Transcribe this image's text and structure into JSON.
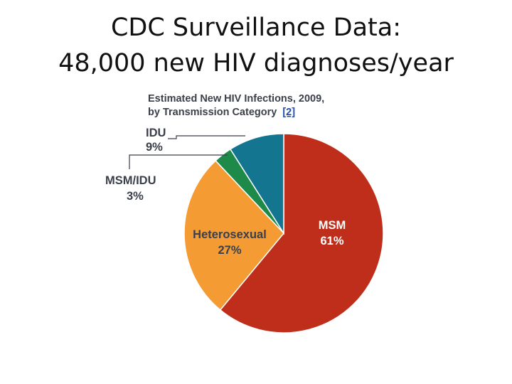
{
  "slide": {
    "title_line1": "CDC Surveillance Data:",
    "title_line2": "48,000 new HIV diagnoses/year"
  },
  "chart_data": {
    "type": "pie",
    "title_line1": "Estimated New HIV Infections, 2009,",
    "title_line2": "by Transmission Category",
    "reference": "[2]",
    "start_angle_deg": 0,
    "direction": "clockwise",
    "slices": [
      {
        "name": "MSM",
        "value": 61,
        "value_label": "61%",
        "color": "#bf2e1a",
        "label_color": "#ffffff",
        "label_placement": "inside"
      },
      {
        "name": "Heterosexual",
        "value": 27,
        "value_label": "27%",
        "color": "#f59b34",
        "label_color": "#3a3f4a",
        "label_placement": "inside"
      },
      {
        "name": "MSM/IDU",
        "value": 3,
        "value_label": "3%",
        "color": "#1e8a4a",
        "label_color": "#3a3f4a",
        "label_placement": "callout"
      },
      {
        "name": "IDU",
        "value": 9,
        "value_label": "9%",
        "color": "#13758f",
        "label_color": "#3a3f4a",
        "label_placement": "callout"
      }
    ],
    "legend": "none"
  }
}
